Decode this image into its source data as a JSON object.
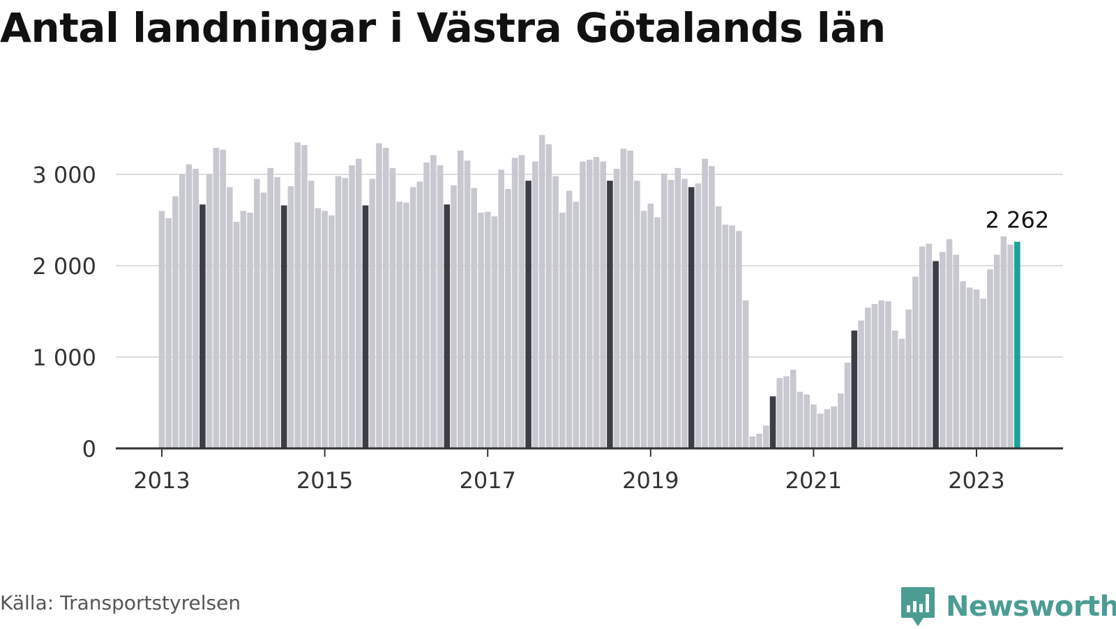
{
  "chart_data": {
    "type": "bar",
    "title": "Antal landningar i Västra Götalands län",
    "xlabel": "",
    "ylabel": "",
    "ylim": [
      0,
      3500
    ],
    "y_ticks": [
      0,
      1000,
      2000,
      3000
    ],
    "y_tick_labels": [
      "0",
      "1 000",
      "2 000",
      "3 000"
    ],
    "x_ticks": [
      2013,
      2015,
      2017,
      2019,
      2021,
      2023
    ],
    "x_tick_labels": [
      "2013",
      "2015",
      "2017",
      "2019",
      "2021",
      "2023"
    ],
    "grid": true,
    "start": "2013-01",
    "end": "2023-07",
    "values": [
      2600,
      2520,
      2760,
      3000,
      3110,
      3060,
      2670,
      3000,
      3290,
      3270,
      2860,
      2480,
      2600,
      2580,
      2950,
      2800,
      3070,
      2970,
      2660,
      2870,
      3350,
      3320,
      2930,
      2630,
      2600,
      2550,
      2980,
      2960,
      3100,
      3170,
      2660,
      2950,
      3340,
      3290,
      3070,
      2700,
      2690,
      2860,
      2920,
      3130,
      3210,
      3100,
      2670,
      2880,
      3260,
      3150,
      2850,
      2580,
      2590,
      2540,
      3050,
      2840,
      3180,
      3210,
      2930,
      3140,
      3430,
      3330,
      2980,
      2580,
      2820,
      2700,
      3140,
      3160,
      3190,
      3140,
      2930,
      3060,
      3280,
      3260,
      2930,
      2600,
      2680,
      2530,
      3010,
      2940,
      3070,
      2950,
      2860,
      2900,
      3170,
      3090,
      2650,
      2450,
      2440,
      2380,
      1620,
      130,
      160,
      250,
      570,
      770,
      790,
      860,
      620,
      590,
      480,
      380,
      430,
      460,
      600,
      940,
      1290,
      1400,
      1540,
      1580,
      1620,
      1610,
      1290,
      1200,
      1520,
      1880,
      2210,
      2240,
      2050,
      2150,
      2290,
      2120,
      1830,
      1760,
      1740,
      1640,
      1960,
      2120,
      2320,
      2230,
      2262
    ],
    "highlight_month": 7,
    "highlight_color": "#3d3d47",
    "bar_color": "#c8c8d0",
    "latest_color": "#1aa39a",
    "latest_label": "2 262"
  },
  "source_text": "Källa: Transportstyrelsen",
  "logo_text": "Newsworthy",
  "colors": {
    "axis": "#333333",
    "grid": "#dddddd",
    "brand": "#4b9c93"
  },
  "icons": {
    "logo": "newsworthy-chart-bubble-icon"
  }
}
